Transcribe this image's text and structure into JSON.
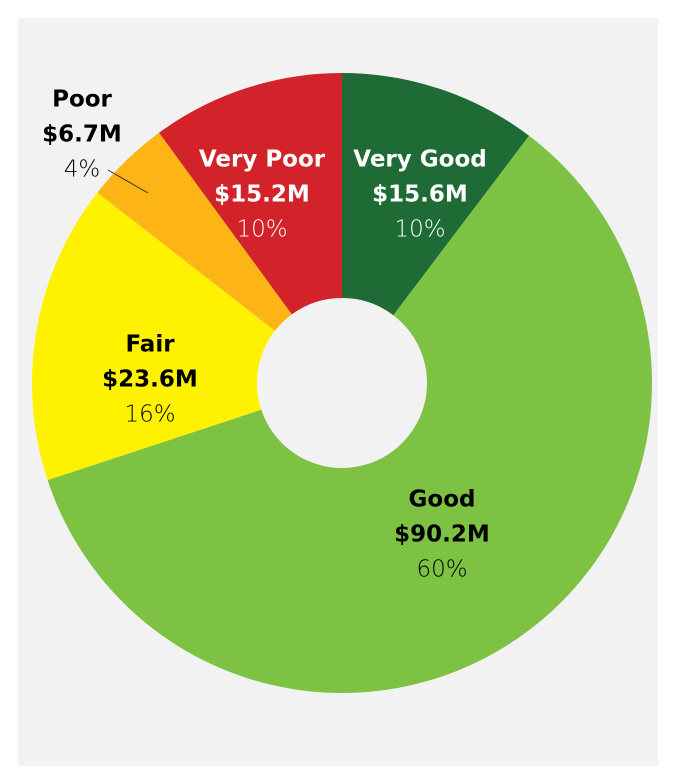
{
  "chart_data": {
    "type": "donut",
    "categories": [
      "Very Good",
      "Good",
      "Fair",
      "Poor",
      "Very Poor"
    ],
    "values": [
      15600000,
      90200000,
      23600000,
      6700000,
      15200000
    ],
    "value_labels": [
      "$15.6M",
      "$90.2M",
      "$23.6M",
      "$6.7M",
      "$15.2M"
    ],
    "percent_labels": [
      "10%",
      "60%",
      "16%",
      "4%",
      "10%"
    ],
    "colors": [
      "#1e6b35",
      "#7dc243",
      "#fff200",
      "#fdb515",
      "#d2232a"
    ]
  }
}
